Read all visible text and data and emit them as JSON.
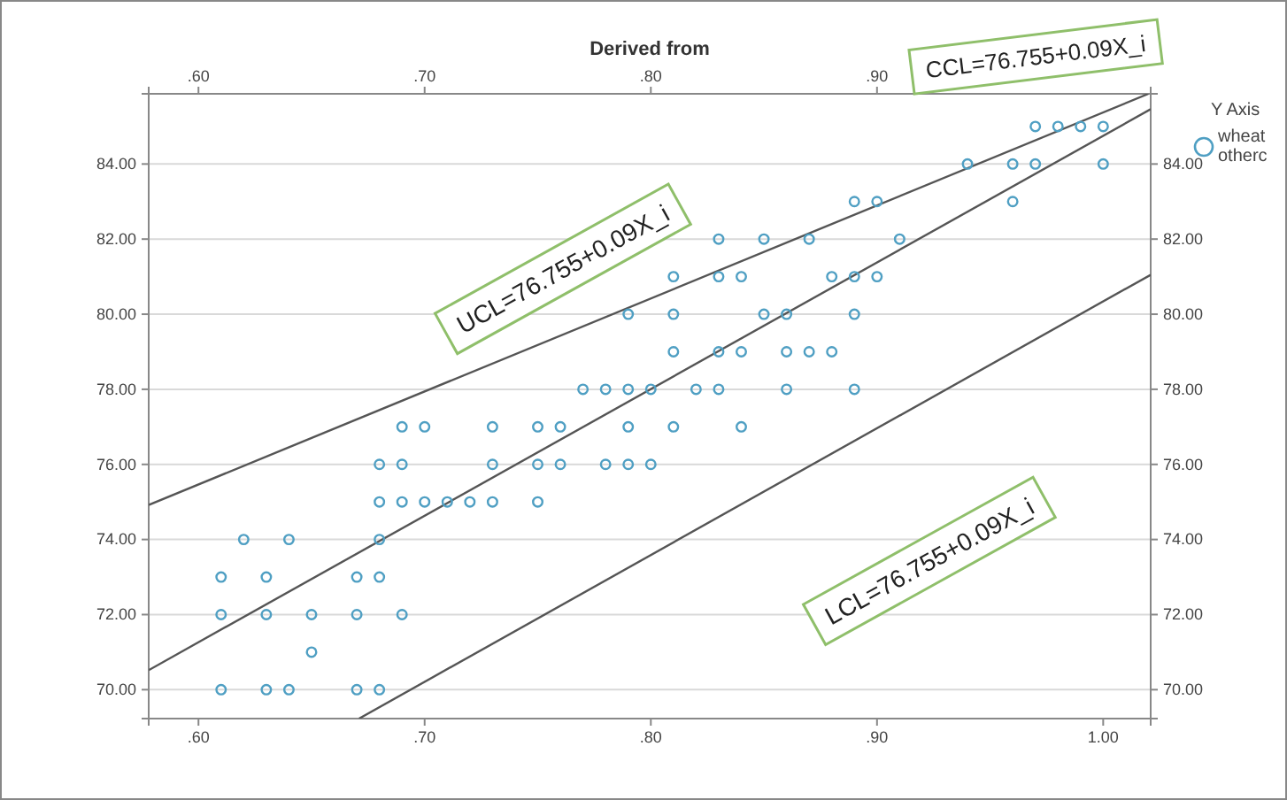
{
  "chart_data": {
    "type": "scatter",
    "x2label": "Derived from",
    "legend_title": "Y Axis",
    "legend": "top right",
    "grid": "y",
    "xlim": [
      0.578,
      1.021
    ],
    "x2lim": [
      0.578,
      1.021
    ],
    "ylim": [
      69.23,
      85.87
    ],
    "y2lim": [
      69.23,
      85.87
    ],
    "xticks": [
      {
        "value": 0.6,
        "label": ".60"
      },
      {
        "value": 0.7,
        "label": ".70"
      },
      {
        "value": 0.8,
        "label": ".80"
      },
      {
        "value": 0.9,
        "label": ".90"
      },
      {
        "value": 1.0,
        "label": "1.00"
      }
    ],
    "x2ticks": [
      {
        "value": 0.6,
        "label": ".60"
      },
      {
        "value": 0.7,
        "label": ".70"
      },
      {
        "value": 0.8,
        "label": ".80"
      },
      {
        "value": 0.9,
        "label": ".90"
      }
    ],
    "yticks": [
      {
        "value": 70,
        "label": "70.00"
      },
      {
        "value": 72,
        "label": "72.00"
      },
      {
        "value": 74,
        "label": "74.00"
      },
      {
        "value": 76,
        "label": "76.00"
      },
      {
        "value": 78,
        "label": "78.00"
      },
      {
        "value": 80,
        "label": "80.00"
      },
      {
        "value": 82,
        "label": "82.00"
      },
      {
        "value": 84,
        "label": "84.00"
      }
    ],
    "y2ticks": [
      {
        "value": 70,
        "label": "70.00"
      },
      {
        "value": 72,
        "label": "72.00"
      },
      {
        "value": 74,
        "label": "74.00"
      },
      {
        "value": 76,
        "label": "76.00"
      },
      {
        "value": 78,
        "label": "78.00"
      },
      {
        "value": 80,
        "label": "80.00"
      },
      {
        "value": 82,
        "label": "82.00"
      },
      {
        "value": 84,
        "label": "84.00"
      }
    ],
    "series": [
      {
        "name": "wheat otherc",
        "marker": "circle",
        "color": "#4f9fc3",
        "x": [
          0.61,
          0.63,
          0.64,
          0.67,
          0.68,
          0.65,
          0.61,
          0.63,
          0.65,
          0.67,
          0.69,
          0.61,
          0.63,
          0.67,
          0.68,
          0.62,
          0.64,
          0.68,
          0.68,
          0.69,
          0.7,
          0.71,
          0.72,
          0.73,
          0.75,
          0.68,
          0.69,
          0.73,
          0.75,
          0.76,
          0.78,
          0.79,
          0.8,
          0.69,
          0.7,
          0.73,
          0.75,
          0.76,
          0.79,
          0.81,
          0.84,
          0.77,
          0.78,
          0.79,
          0.8,
          0.82,
          0.83,
          0.86,
          0.89,
          0.81,
          0.83,
          0.84,
          0.86,
          0.87,
          0.88,
          0.79,
          0.81,
          0.85,
          0.86,
          0.89,
          0.81,
          0.83,
          0.84,
          0.88,
          0.89,
          0.9,
          0.83,
          0.85,
          0.87,
          0.91,
          0.89,
          0.9,
          0.96,
          0.94,
          0.96,
          0.97,
          1.0,
          0.97,
          0.98,
          0.99,
          1.0
        ],
        "values": [
          70,
          70,
          70,
          70,
          70,
          71,
          72,
          72,
          72,
          72,
          72,
          73,
          73,
          73,
          73,
          74,
          74,
          74,
          75,
          75,
          75,
          75,
          75,
          75,
          75,
          76,
          76,
          76,
          76,
          76,
          76,
          76,
          76,
          77,
          77,
          77,
          77,
          77,
          77,
          77,
          77,
          78,
          78,
          78,
          78,
          78,
          78,
          78,
          78,
          79,
          79,
          79,
          79,
          79,
          79,
          80,
          80,
          80,
          80,
          80,
          81,
          81,
          81,
          81,
          81,
          81,
          82,
          82,
          82,
          82,
          83,
          83,
          83,
          84,
          84,
          84,
          84,
          85,
          85,
          85,
          85
        ]
      },
      {
        "type": "line",
        "marker": "none",
        "color": "#555555",
        "x": [
          0.578,
          1.02
        ],
        "values": [
          74.92,
          85.87
        ]
      },
      {
        "type": "line",
        "marker": "none",
        "color": "#555555",
        "x": [
          0.578,
          1.021
        ],
        "values": [
          70.52,
          85.46
        ]
      },
      {
        "type": "line",
        "marker": "none",
        "color": "#555555",
        "x": [
          0.671,
          1.021
        ],
        "values": [
          69.23,
          81.05
        ]
      }
    ],
    "annotations": [
      "UCL=76.755+0.09X_i",
      "CCL=76.755+0.09X_i",
      "LCL=76.755+0.09X_i"
    ]
  }
}
